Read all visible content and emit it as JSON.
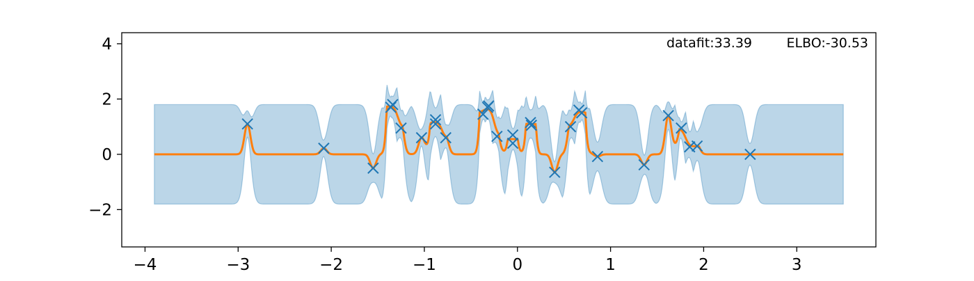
{
  "chart_data": {
    "type": "line",
    "title": "",
    "xlabel": "",
    "ylabel": "",
    "xlim": [
      -4.25,
      3.85
    ],
    "ylim": [
      -3.35,
      4.4
    ],
    "xticks": [
      -4,
      -3,
      -2,
      -1,
      0,
      1,
      2,
      3
    ],
    "xtick_labels": [
      "−4",
      "−3",
      "−2",
      "−1",
      "0",
      "1",
      "2",
      "3"
    ],
    "yticks": [
      -2,
      0,
      2,
      4
    ],
    "ytick_labels": [
      "−2",
      "0",
      "2",
      "4"
    ],
    "grid": false,
    "annotations": [
      {
        "text": "datafit:33.39",
        "position": "top-right"
      },
      {
        "text": "ELBO:-30.53",
        "position": "top-right"
      }
    ],
    "x_range": [
      -3.9,
      3.5
    ],
    "prior_band": {
      "lower": -1.8,
      "upper": 1.8
    },
    "kernel_lengthscale": 0.045,
    "observations": [
      {
        "x": -2.9,
        "y": 1.1
      },
      {
        "x": -2.08,
        "y": 0.22
      },
      {
        "x": -1.55,
        "y": -0.5
      },
      {
        "x": -1.36,
        "y": 1.7
      },
      {
        "x": -1.34,
        "y": 1.8
      },
      {
        "x": -1.25,
        "y": 0.95
      },
      {
        "x": -1.03,
        "y": 0.6
      },
      {
        "x": -0.88,
        "y": 1.25
      },
      {
        "x": -0.88,
        "y": 1.1
      },
      {
        "x": -0.77,
        "y": 0.6
      },
      {
        "x": -0.37,
        "y": 1.45
      },
      {
        "x": -0.32,
        "y": 1.7
      },
      {
        "x": -0.31,
        "y": 1.75
      },
      {
        "x": -0.22,
        "y": 0.65
      },
      {
        "x": -0.05,
        "y": 0.7
      },
      {
        "x": -0.05,
        "y": 0.4
      },
      {
        "x": 0.14,
        "y": 1.15
      },
      {
        "x": 0.15,
        "y": 1.05
      },
      {
        "x": 0.4,
        "y": -0.65
      },
      {
        "x": 0.57,
        "y": 1.0
      },
      {
        "x": 0.66,
        "y": 1.6
      },
      {
        "x": 0.69,
        "y": 1.5
      },
      {
        "x": 0.86,
        "y": -0.08
      },
      {
        "x": 1.36,
        "y": -0.38
      },
      {
        "x": 1.62,
        "y": 1.4
      },
      {
        "x": 1.76,
        "y": 0.95
      },
      {
        "x": 1.85,
        "y": 0.27
      },
      {
        "x": 1.93,
        "y": 0.3
      },
      {
        "x": 2.5,
        "y": 0.0
      }
    ],
    "colors": {
      "band_fill": "#1f77b4",
      "band_opacity": 0.3,
      "mean_line": "#ff7f0e",
      "markers": "#1f77b4",
      "axes": "#000000"
    }
  }
}
